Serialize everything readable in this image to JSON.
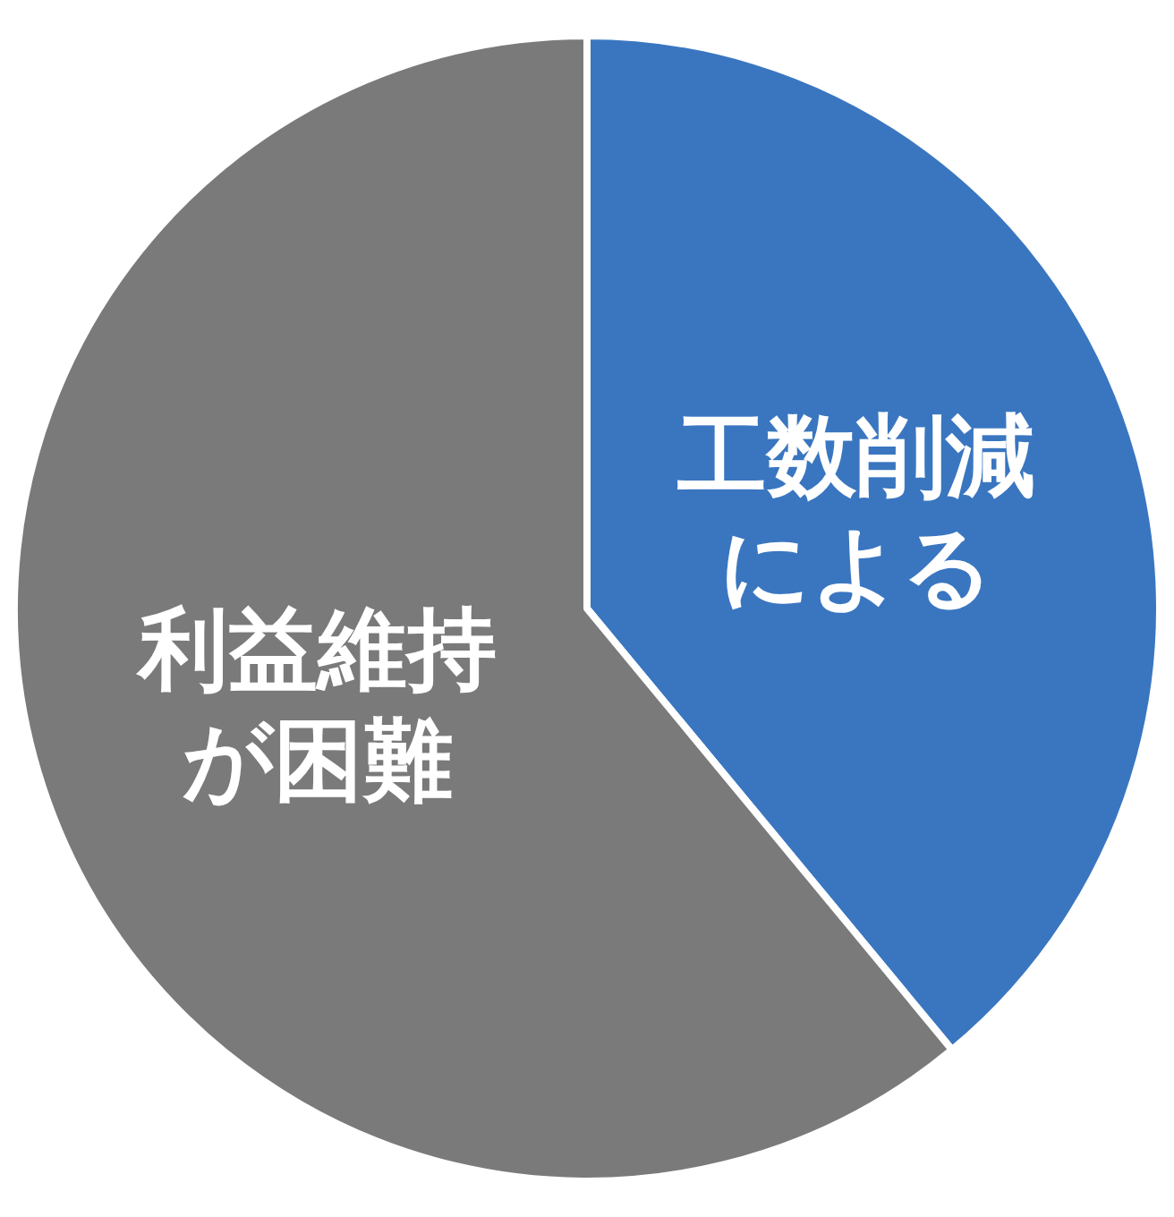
{
  "chart_data": {
    "type": "pie",
    "categories": [
      "工数削減による",
      "利益維持が困難"
    ],
    "values": [
      39,
      61
    ],
    "colors": [
      "#3a76c0",
      "#7a7a7a"
    ]
  }
}
